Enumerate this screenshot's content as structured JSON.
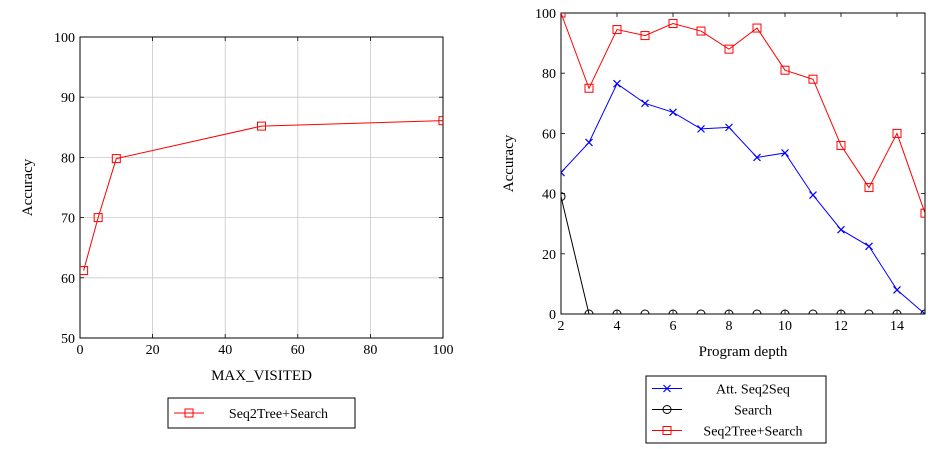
{
  "chart_data": [
    {
      "type": "line",
      "xlabel": "MAX_VISITED",
      "ylabel": "Accuracy",
      "xlim": [
        0,
        100
      ],
      "ylim": [
        50,
        100
      ],
      "xticks": [
        0,
        20,
        40,
        60,
        80,
        100
      ],
      "yticks": [
        50,
        60,
        70,
        80,
        90,
        100
      ],
      "grid": true,
      "legend": "below",
      "series": [
        {
          "name": "Seq2Tree+Search",
          "color": "#ff0000",
          "marker": "square",
          "x": [
            1,
            5,
            10,
            50,
            100
          ],
          "y": [
            61.2,
            70.0,
            79.8,
            85.2,
            86.1
          ]
        }
      ]
    },
    {
      "type": "line",
      "xlabel": "Program depth",
      "ylabel": "Accuracy",
      "xlim": [
        2,
        15
      ],
      "ylim": [
        0,
        100
      ],
      "xticks": [
        2,
        4,
        6,
        8,
        10,
        12,
        14
      ],
      "yticks": [
        0,
        20,
        40,
        60,
        80,
        100
      ],
      "grid": false,
      "legend": "below",
      "series": [
        {
          "name": "Att. Seq2Seq",
          "color": "#0000ff",
          "marker": "x",
          "x": [
            2,
            3,
            4,
            5,
            6,
            7,
            8,
            9,
            10,
            11,
            12,
            13,
            14,
            15
          ],
          "y": [
            47,
            57,
            76.5,
            70,
            67,
            61.5,
            62,
            52,
            53.5,
            39.5,
            28,
            22.5,
            8,
            0
          ]
        },
        {
          "name": "Search",
          "color": "#000000",
          "marker": "circle",
          "x": [
            2,
            3,
            4,
            5,
            6,
            7,
            8,
            9,
            10,
            11,
            12,
            13,
            14,
            15
          ],
          "y": [
            39,
            0,
            0,
            0,
            0,
            0,
            0,
            0,
            0,
            0,
            0,
            0,
            0,
            0
          ]
        },
        {
          "name": "Seq2Tree+Search",
          "color": "#ff0000",
          "marker": "square",
          "x": [
            2,
            3,
            4,
            5,
            6,
            7,
            8,
            9,
            10,
            11,
            12,
            13,
            14,
            15
          ],
          "y": [
            100,
            75,
            94.5,
            92.5,
            96.5,
            94,
            88,
            95,
            81,
            78,
            56,
            42,
            60,
            33.5
          ]
        }
      ]
    }
  ]
}
